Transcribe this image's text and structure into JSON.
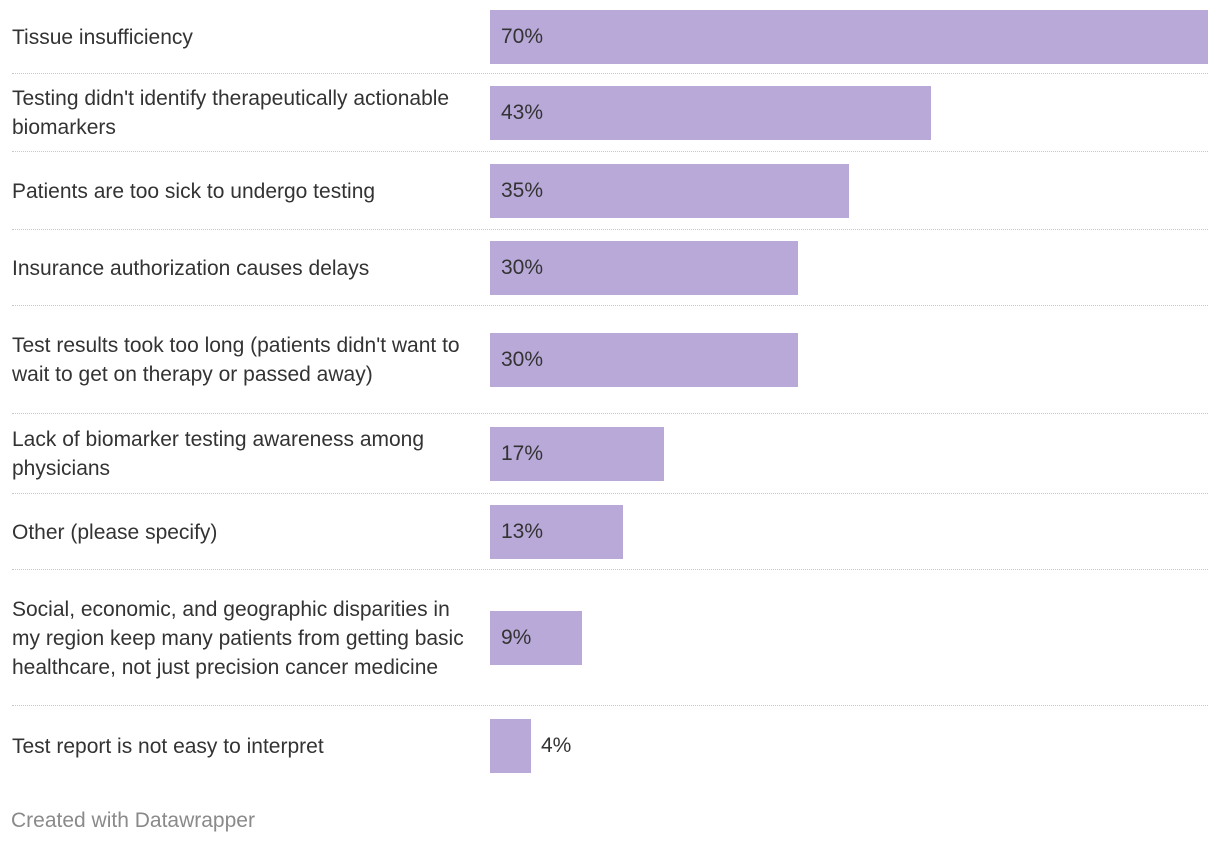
{
  "chart_data": {
    "type": "bar",
    "orientation": "horizontal",
    "categories": [
      "Tissue insufficiency",
      "Testing didn't identify therapeutically actionable biomarkers",
      "Patients are too sick to undergo testing",
      "Insurance authorization causes delays",
      "Test results took too long (patients didn't want to wait to get on therapy or passed away)",
      "Lack of biomarker testing awareness among physicians",
      "Other (please specify)",
      "Social, economic, and geographic disparities in my region keep many patients from getting basic healthcare, not just precision cancer medicine",
      "Test report is not easy to interpret"
    ],
    "values": [
      70,
      43,
      35,
      30,
      30,
      17,
      13,
      9,
      4
    ],
    "value_labels": [
      "70%",
      "43%",
      "35%",
      "30%",
      "30%",
      "17%",
      "13%",
      "9%",
      "4%"
    ],
    "unit": "%",
    "xlim": [
      0,
      70
    ],
    "bar_color": "#b9a9d9",
    "grid": false
  },
  "footer": {
    "credit": "Created with Datawrapper"
  }
}
